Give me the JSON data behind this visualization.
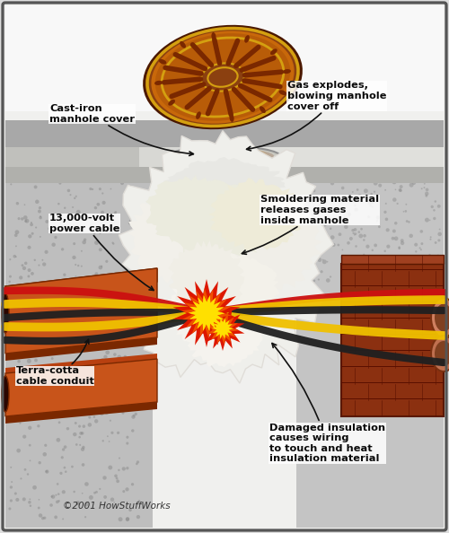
{
  "labels": {
    "cast_iron": "Cast-iron\nmanhole cover",
    "gas_explodes": "Gas explodes,\nblowing manhole\ncover off",
    "power_cable": "13,000-volt\npower cable",
    "terra_cotta": "Terra-cotta\ncable conduit",
    "smoldering": "Smoldering material\nreleases gases\ninside manhole",
    "damaged": "Damaged insulation\ncauses wiring\nto touch and heat\ninsulation material",
    "copyright": "©2001 HowStuffWorks"
  },
  "colors": {
    "cover_outer": "#8B4010",
    "cover_mid": "#C8680A",
    "cover_gold": "#D4A010",
    "cover_dark_slot": "#7A2800",
    "cover_inner_bg": "#B85C08",
    "shaft_silver": "#C0C0C0",
    "shaft_dark": "#909090",
    "shaft_rim": "#D8D8D8",
    "smoke1": "#F0EDE5",
    "smoke2": "#E8E5DC",
    "street_gray": "#ABABAB",
    "concrete_left": "#BCBCBC",
    "concrete_dots": "#A0A0A0",
    "asphalt": "#989898",
    "asphalt_edge": "#787878",
    "white_layer": "#E8E8E8",
    "gray_layer": "#BBBBBB",
    "terra_top": "#C8541A",
    "terra_mid": "#A84010",
    "terra_bot": "#7A2800",
    "brick_face": "#8B3010",
    "brick_top": "#6B2008",
    "brick_hole": "#C07050",
    "wire_red": "#CC1010",
    "wire_yellow": "#F0C000",
    "wire_black": "#202020",
    "exp_red": "#DD1800",
    "exp_orange": "#F05000",
    "exp_yellow": "#FFE000",
    "arrow": "#111111",
    "border": "#555555",
    "bg": "#F0F0EE"
  }
}
